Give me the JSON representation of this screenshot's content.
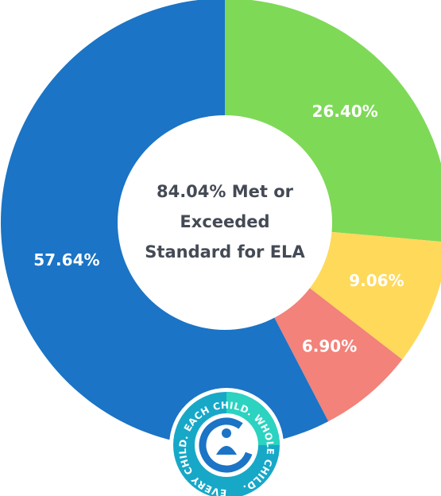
{
  "chart_data": {
    "type": "donut",
    "values": [
      26.4,
      9.06,
      6.9,
      57.64
    ],
    "value_labels": [
      "26.40%",
      "9.06%",
      "6.90%",
      "57.64%"
    ],
    "colors": [
      "#7ed957",
      "#ffd95a",
      "#f2827a",
      "#1b74c5"
    ],
    "center_text": [
      "84.04% Met or",
      "Exceeded",
      "Standard for ELA"
    ]
  },
  "logo": {
    "text": "EVERY CHILD. EACH CHILD. WHOLE CHILD."
  }
}
